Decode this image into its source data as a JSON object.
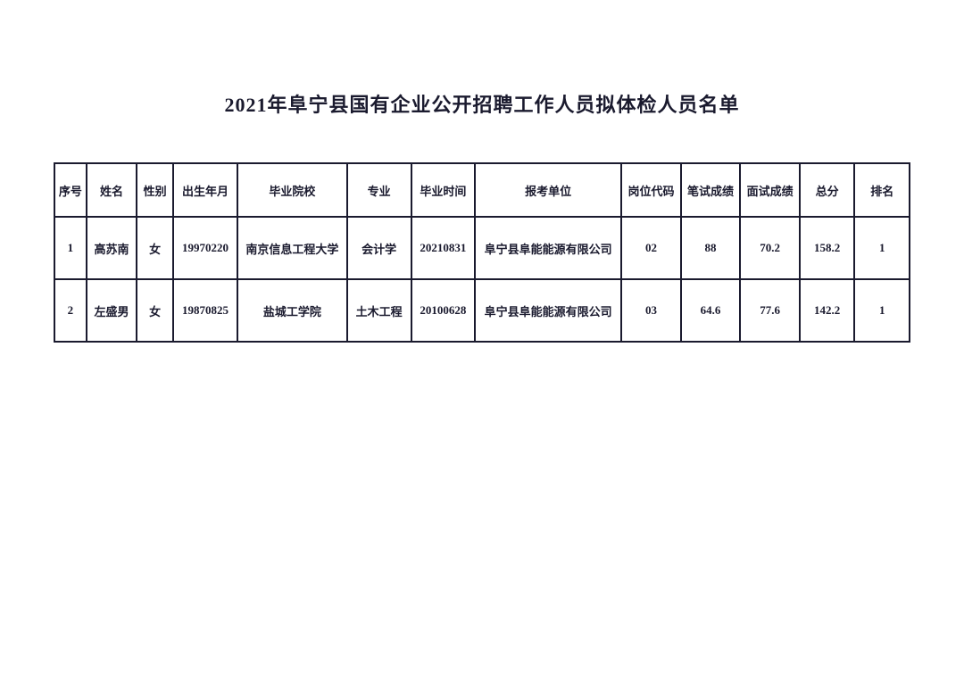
{
  "title": "2021年阜宁县国有企业公开招聘工作人员拟体检人员名单",
  "table": {
    "columns": [
      "序号",
      "姓名",
      "性别",
      "出生年月",
      "毕业院校",
      "专业",
      "毕业时间",
      "报考单位",
      "岗位代码",
      "笔试成绩",
      "面试成绩",
      "总分",
      "排名"
    ],
    "rows": [
      {
        "seq": "1",
        "name": "高苏南",
        "gender": "女",
        "birth": "19970220",
        "school": "南京信息工程大学",
        "major": "会计学",
        "gradtime": "20210831",
        "unit": "阜宁县阜能能源有限公司",
        "poscode": "02",
        "written": "88",
        "interview": "70.2",
        "total": "158.2",
        "rank": "1"
      },
      {
        "seq": "2",
        "name": "左盛男",
        "gender": "女",
        "birth": "19870825",
        "school": "盐城工学院",
        "major": "土木工程",
        "gradtime": "20100628",
        "unit": "阜宁县阜能能源有限公司",
        "poscode": "03",
        "written": "64.6",
        "interview": "77.6",
        "total": "142.2",
        "rank": "1"
      }
    ],
    "colors": {
      "text": "#1a1a2e",
      "border": "#1a1a2e",
      "background": "#ffffff"
    },
    "font_sizes": {
      "title": 22,
      "cell": 13
    }
  }
}
